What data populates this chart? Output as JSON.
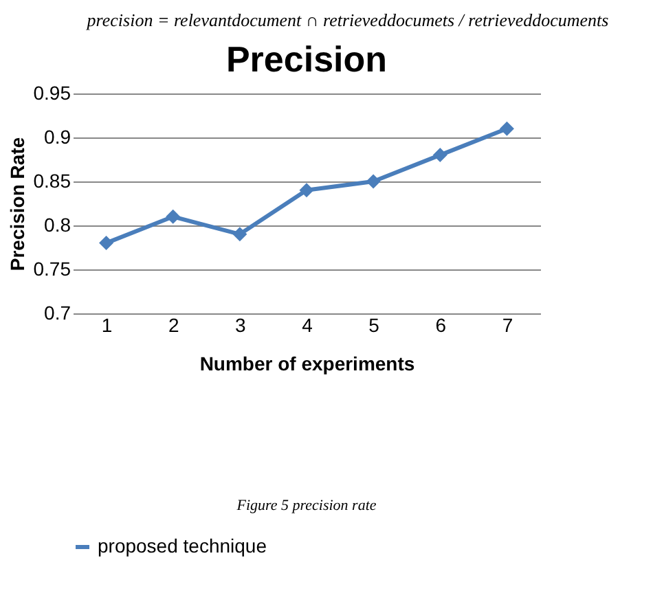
{
  "chart_data": {
    "type": "line",
    "title": "Precision",
    "xlabel": "Number of experiments",
    "ylabel": "Precision Rate",
    "categories": [
      "1",
      "2",
      "3",
      "4",
      "5",
      "6",
      "7"
    ],
    "series": [
      {
        "name": "proposed technique",
        "color": "#4a7ebb",
        "values": [
          0.78,
          0.81,
          0.79,
          0.84,
          0.85,
          0.88,
          0.91
        ]
      }
    ],
    "ylim": [
      0.7,
      0.95
    ],
    "yticks": [
      0.7,
      0.75,
      0.8,
      0.85,
      0.9,
      0.95
    ],
    "grid": "y",
    "legend": "bottom",
    "marker": "diamond",
    "line_style": "solid",
    "annotations": [
      "precision = relevantdocument ∩ retrieveddocumets / retrieveddocuments",
      "Figure 5 precision rate"
    ]
  }
}
